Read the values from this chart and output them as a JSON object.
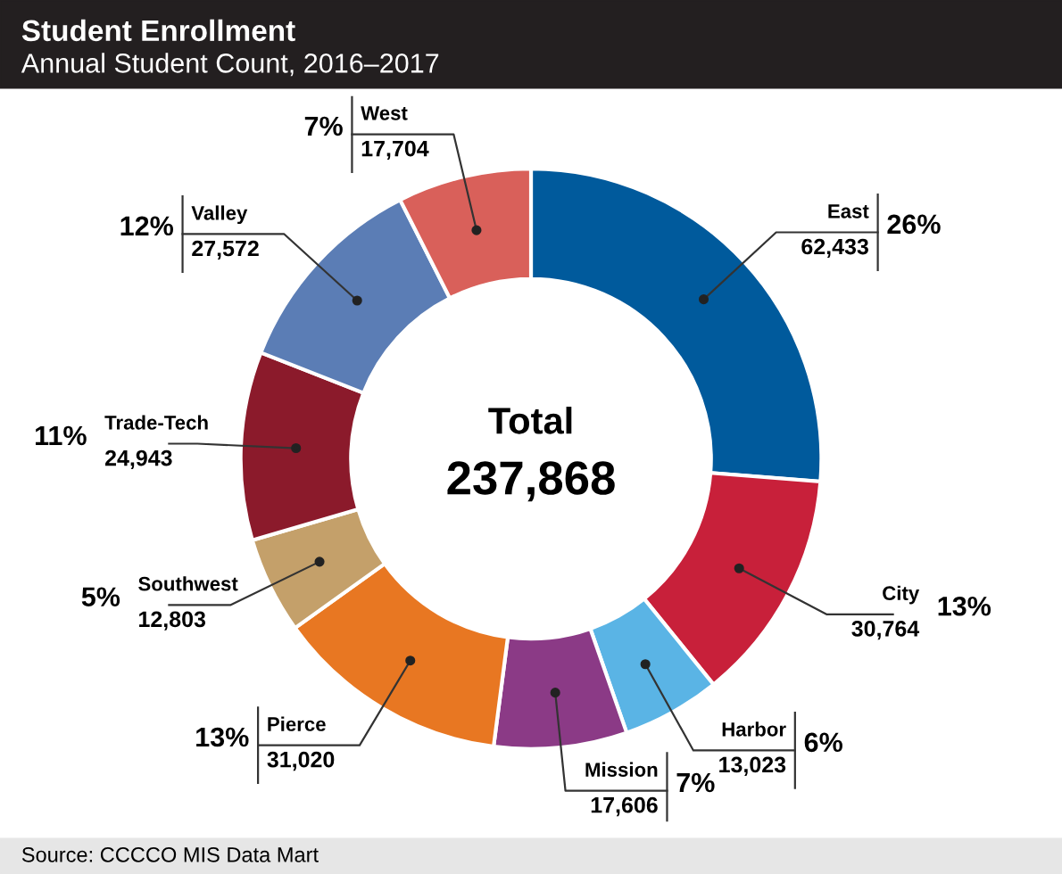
{
  "chart_data": {
    "type": "donut",
    "title": "Student Enrollment",
    "subtitle": "Annual Student Count, 2016–2017",
    "categories": [
      "East",
      "City",
      "Harbor",
      "Mission",
      "Pierce",
      "Southwest",
      "Trade-Tech",
      "Valley",
      "West"
    ],
    "values": [
      62433,
      30764,
      13023,
      17606,
      31020,
      12803,
      24943,
      27572,
      17704
    ],
    "value_labels": [
      "62,433",
      "30,764",
      "13,023",
      "17,606",
      "31,020",
      "12,803",
      "24,943",
      "27,572",
      "17,704"
    ],
    "colors": [
      "#005a9c",
      "#c8203a",
      "#5ab4e5",
      "#8b3a86",
      "#e87722",
      "#c4a06a",
      "#8b1a2b",
      "#5b7db5",
      "#d9605a"
    ],
    "annotations": [
      {
        "text": "26%",
        "x": "East"
      },
      {
        "text": "13%",
        "x": "City"
      },
      {
        "text": "6%",
        "x": "Harbor"
      },
      {
        "text": "7%",
        "x": "Mission"
      },
      {
        "text": "13%",
        "x": "Pierce"
      },
      {
        "text": "5%",
        "x": "Southwest"
      },
      {
        "text": "11%",
        "x": "Trade-Tech"
      },
      {
        "text": "12%",
        "x": "Valley"
      },
      {
        "text": "7%",
        "x": "West"
      },
      "Total",
      "237,868",
      "Source: CCCCO MIS Data Mart"
    ]
  }
}
